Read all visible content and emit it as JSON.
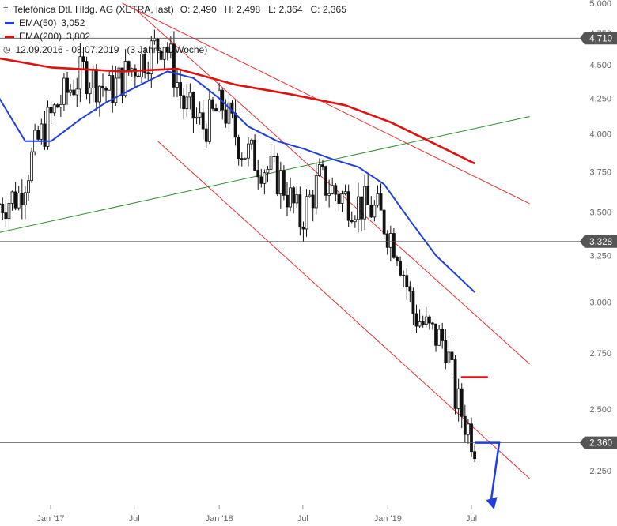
{
  "header": {
    "instrument": "Telefónica Dtl. Hldg. AG (XETRA, last)",
    "ohlc": "O: 2,490   H: 2,498   L: 2,364   C: 2,365",
    "ema50_label": "EMA(50)",
    "ema50_value": "3,052",
    "ema200_label": "EMA(200)",
    "ema200_value": "3,802",
    "range_label": "12.09.2016 - 08.07.2019   (3 Jahre, 1 Woche)"
  },
  "colors": {
    "candle": "#111111",
    "ema50": "#1f3fe0",
    "ema200": "#e01010",
    "channel": "#e83030",
    "support": "#2e8b2e",
    "hline": "#555555",
    "badge_bg": "#555555",
    "arrow": "#1f3fe0"
  },
  "chart_data": {
    "type": "candlestick",
    "x_range": [
      "2016-09-12",
      "2019-07-08"
    ],
    "ylim": [
      2.1,
      5.0
    ],
    "y_scale": "log",
    "y_ticks": [
      {
        "v": 5.0,
        "label": "5,000"
      },
      {
        "v": 4.75,
        "label": "4,750"
      },
      {
        "v": 4.5,
        "label": "4,500"
      },
      {
        "v": 4.25,
        "label": "4,250"
      },
      {
        "v": 4.0,
        "label": "4,000"
      },
      {
        "v": 3.75,
        "label": "3,750"
      },
      {
        "v": 3.5,
        "label": "3,500"
      },
      {
        "v": 3.25,
        "label": "3,250"
      },
      {
        "v": 3.0,
        "label": "3,000"
      },
      {
        "v": 2.75,
        "label": "2,750"
      },
      {
        "v": 2.5,
        "label": "2,500"
      },
      {
        "v": 2.25,
        "label": "2,250"
      }
    ],
    "x_ticks": [
      {
        "date": "2017-01-01",
        "label": "Jan '17"
      },
      {
        "date": "2017-07-01",
        "label": "Jul"
      },
      {
        "date": "2018-01-01",
        "label": "Jan '18"
      },
      {
        "date": "2018-07-01",
        "label": "Jul"
      },
      {
        "date": "2019-01-01",
        "label": "Jan '19"
      },
      {
        "date": "2019-07-01",
        "label": "Jul"
      }
    ],
    "close_path": [
      {
        "date": "2016-09-12",
        "close": 3.55
      },
      {
        "date": "2016-10-24",
        "close": 3.6
      },
      {
        "date": "2016-12-05",
        "close": 3.95
      },
      {
        "date": "2017-01-16",
        "close": 4.2
      },
      {
        "date": "2017-03-13",
        "close": 4.45
      },
      {
        "date": "2017-05-08",
        "close": 4.3
      },
      {
        "date": "2017-07-03",
        "close": 4.5
      },
      {
        "date": "2017-09-04",
        "close": 4.7
      },
      {
        "date": "2017-10-16",
        "close": 4.2
      },
      {
        "date": "2017-11-27",
        "close": 4.05
      },
      {
        "date": "2018-01-08",
        "close": 4.2
      },
      {
        "date": "2018-02-19",
        "close": 3.9
      },
      {
        "date": "2018-04-02",
        "close": 3.8
      },
      {
        "date": "2018-05-14",
        "close": 3.7
      },
      {
        "date": "2018-06-25",
        "close": 3.45
      },
      {
        "date": "2018-08-06",
        "close": 3.7
      },
      {
        "date": "2018-09-17",
        "close": 3.6
      },
      {
        "date": "2018-10-29",
        "close": 3.55
      },
      {
        "date": "2018-12-10",
        "close": 3.5
      },
      {
        "date": "2019-01-21",
        "close": 3.3
      },
      {
        "date": "2019-02-25",
        "close": 2.95
      },
      {
        "date": "2019-04-01",
        "close": 2.85
      },
      {
        "date": "2019-05-06",
        "close": 2.8
      },
      {
        "date": "2019-05-27",
        "close": 2.55
      },
      {
        "date": "2019-06-17",
        "close": 2.45
      },
      {
        "date": "2019-07-08",
        "close": 2.365
      }
    ],
    "ema50_path": [
      {
        "date": "2016-09-12",
        "v": 4.25
      },
      {
        "date": "2016-11-07",
        "v": 3.95
      },
      {
        "date": "2017-01-02",
        "v": 3.95
      },
      {
        "date": "2017-03-06",
        "v": 4.1
      },
      {
        "date": "2017-05-01",
        "v": 4.22
      },
      {
        "date": "2017-07-03",
        "v": 4.33
      },
      {
        "date": "2017-09-11",
        "v": 4.45
      },
      {
        "date": "2017-11-06",
        "v": 4.4
      },
      {
        "date": "2018-01-01",
        "v": 4.25
      },
      {
        "date": "2018-03-05",
        "v": 4.05
      },
      {
        "date": "2018-05-07",
        "v": 3.95
      },
      {
        "date": "2018-07-02",
        "v": 3.9
      },
      {
        "date": "2018-09-03",
        "v": 3.83
      },
      {
        "date": "2018-10-29",
        "v": 3.78
      },
      {
        "date": "2018-12-24",
        "v": 3.67
      },
      {
        "date": "2019-02-18",
        "v": 3.45
      },
      {
        "date": "2019-04-15",
        "v": 3.25
      },
      {
        "date": "2019-07-08",
        "v": 3.052
      }
    ],
    "ema200_path": [
      {
        "date": "2016-09-12",
        "v": 4.55
      },
      {
        "date": "2017-01-02",
        "v": 4.48
      },
      {
        "date": "2017-06-05",
        "v": 4.45
      },
      {
        "date": "2017-10-02",
        "v": 4.47
      },
      {
        "date": "2018-02-05",
        "v": 4.35
      },
      {
        "date": "2018-06-04",
        "v": 4.28
      },
      {
        "date": "2018-10-01",
        "v": 4.2
      },
      {
        "date": "2019-01-07",
        "v": 4.08
      },
      {
        "date": "2019-04-01",
        "v": 3.95
      },
      {
        "date": "2019-07-08",
        "v": 3.802
      }
    ],
    "horizontal_levels": [
      {
        "v": 4.71,
        "label": "4,710"
      },
      {
        "v": 3.328,
        "label": "3,328"
      },
      {
        "v": 2.36,
        "label": "2,360"
      }
    ],
    "trend_lines": [
      {
        "kind": "channel-upper",
        "from": {
          "date": "2017-06-05",
          "v": 5.0
        },
        "to": {
          "date": "2019-11-04",
          "v": 3.55
        }
      },
      {
        "kind": "channel-mid",
        "from": {
          "date": "2017-07-03",
          "v": 4.95
        },
        "to": {
          "date": "2019-11-04",
          "v": 2.7
        }
      },
      {
        "kind": "channel-lower",
        "from": {
          "date": "2017-08-21",
          "v": 3.95
        },
        "to": {
          "date": "2019-11-04",
          "v": 2.22
        }
      },
      {
        "kind": "support",
        "from": {
          "date": "2016-09-12",
          "v": 3.38
        },
        "to": {
          "date": "2019-11-04",
          "v": 4.12
        }
      }
    ],
    "markers": [
      {
        "kind": "target-bar",
        "date": "2019-06-10",
        "v": 2.64
      },
      {
        "kind": "down-arrow",
        "from": {
          "date": "2019-07-08",
          "v": 2.36
        },
        "to": {
          "date": "2019-08-19",
          "v": 2.1
        }
      }
    ]
  }
}
